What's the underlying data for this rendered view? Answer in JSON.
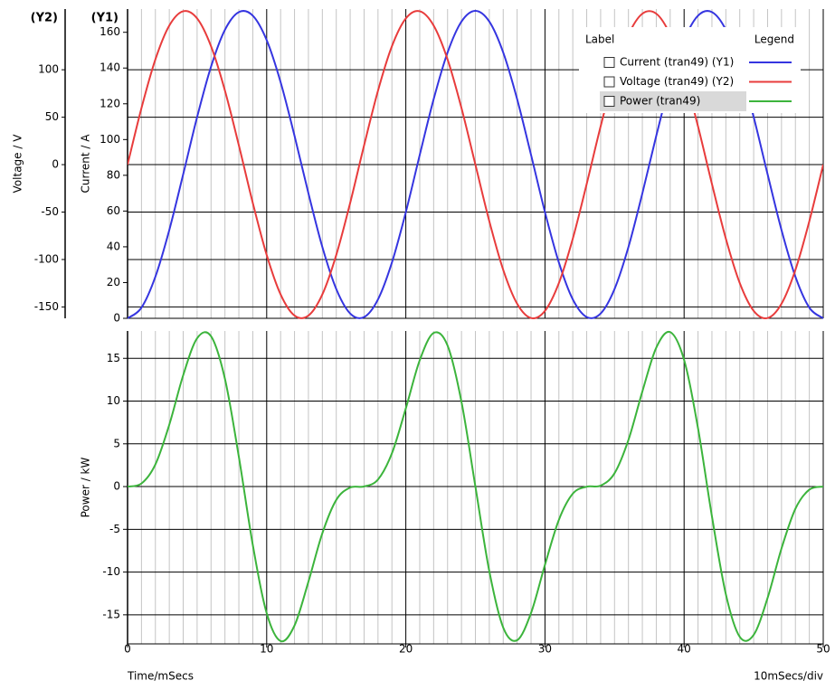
{
  "chart_data": [
    {
      "type": "line",
      "y_tag": "(Y1)",
      "y2_tag": "(Y2)",
      "ylabel": "Current / A",
      "y2label": "Voltage / V",
      "ylim": [
        0,
        173
      ],
      "yticks": [
        0,
        20,
        40,
        60,
        80,
        100,
        120,
        140,
        160
      ],
      "y2lim": [
        -162,
        164
      ],
      "y2ticks": [
        -150,
        -100,
        -50,
        0,
        50,
        100
      ],
      "grid": "y2",
      "legend": {
        "position": "upper right",
        "header": [
          "Label",
          "Legend"
        ]
      },
      "x": [
        0,
        1,
        2,
        3,
        4,
        5,
        6,
        7,
        8,
        9,
        10,
        11,
        12,
        13,
        14,
        15,
        16,
        17,
        18,
        19,
        20,
        21,
        22,
        23,
        24,
        25,
        26,
        27,
        28,
        29,
        30,
        31,
        32,
        33,
        34,
        35,
        36,
        37,
        38,
        39,
        40,
        41,
        42,
        43,
        44,
        45,
        46,
        47,
        48,
        49,
        50
      ],
      "series": [
        {
          "name": "Current (tran49) (Y1)",
          "color": "#3535e0",
          "axis": "y",
          "values": [
            0,
            6.0,
            23.3,
            49.4,
            80.6,
            112.6,
            140.8,
            161.4,
            171.3,
            169.3,
            155.6,
            132.1,
            102.1,
            69.9,
            39.9,
            16.4,
            2.7,
            0.7,
            10.6,
            31.2,
            59.4,
            91.4,
            122.6,
            148.7,
            166.0,
            172,
            166.0,
            148.7,
            122.6,
            91.4,
            59.4,
            31.2,
            10.6,
            0.7,
            2.7,
            16.4,
            39.9,
            69.9,
            102.1,
            132.1,
            155.6,
            169.3,
            171.3,
            161.4,
            140.8,
            112.6,
            80.6,
            49.4,
            23.3,
            6.0,
            0
          ]
        },
        {
          "name": "Voltage (tran49) (Y2)",
          "color": "#e83c3c",
          "axis": "y2",
          "values": [
            0,
            59.6,
            110.9,
            146.6,
            161.7,
            154.1,
            124.8,
            78.0,
            20.3,
            -40.3,
            -95.2,
            -136.8,
            -159.1,
            -159.1,
            -136.8,
            -95.2,
            -40.3,
            20.3,
            78.0,
            124.8,
            154.1,
            161.7,
            146.6,
            110.9,
            59.6,
            0,
            -59.6,
            -110.9,
            -146.6,
            -161.7,
            -154.1,
            -124.8,
            -78.0,
            -20.3,
            40.3,
            95.2,
            136.8,
            159.1,
            159.1,
            136.8,
            95.2,
            40.3,
            -20.3,
            -78.0,
            -124.8,
            -154.1,
            -161.7,
            -146.6,
            -110.9,
            -59.6,
            0
          ]
        }
      ]
    },
    {
      "type": "line",
      "ylabel": "Power / kW",
      "xlabel": "Time/mSecs",
      "x_scale_label": "10mSecs/div",
      "xlim": [
        0,
        50
      ],
      "xticks": [
        0,
        10,
        20,
        30,
        40,
        50
      ],
      "minor_grid_divisions": 10,
      "ylim": [
        -18.4,
        18.2
      ],
      "yticks": [
        -15,
        -10,
        -5,
        0,
        5,
        10,
        15
      ],
      "grid": "y",
      "x": [
        0,
        1,
        2,
        3,
        4,
        5,
        6,
        7,
        8,
        9,
        10,
        11,
        12,
        13,
        14,
        15,
        16,
        17,
        18,
        19,
        20,
        21,
        22,
        23,
        24,
        25,
        26,
        27,
        28,
        29,
        30,
        31,
        32,
        33,
        34,
        35,
        36,
        37,
        38,
        39,
        40,
        41,
        42,
        43,
        44,
        45,
        46,
        47,
        48,
        49,
        50
      ],
      "series": [
        {
          "name": "Power (tran49)",
          "color": "#3cb43c",
          "axis": "y",
          "highlight": true,
          "values": [
            0,
            0.36,
            2.59,
            7.24,
            13.03,
            17.35,
            17.58,
            12.59,
            3.48,
            -6.82,
            -14.81,
            -18.07,
            -16.25,
            -11.12,
            -5.46,
            -1.56,
            -0.11,
            0.01,
            0.83,
            3.89,
            9.15,
            14.78,
            17.97,
            16.49,
            9.9,
            0,
            -9.9,
            -16.49,
            -17.97,
            -14.78,
            -9.15,
            -3.89,
            -0.83,
            -0.01,
            0.11,
            1.56,
            5.46,
            11.12,
            16.25,
            18.07,
            14.81,
            6.82,
            -3.48,
            -12.59,
            -17.58,
            -17.35,
            -13.03,
            -7.24,
            -2.59,
            -0.36,
            0
          ]
        }
      ]
    }
  ]
}
